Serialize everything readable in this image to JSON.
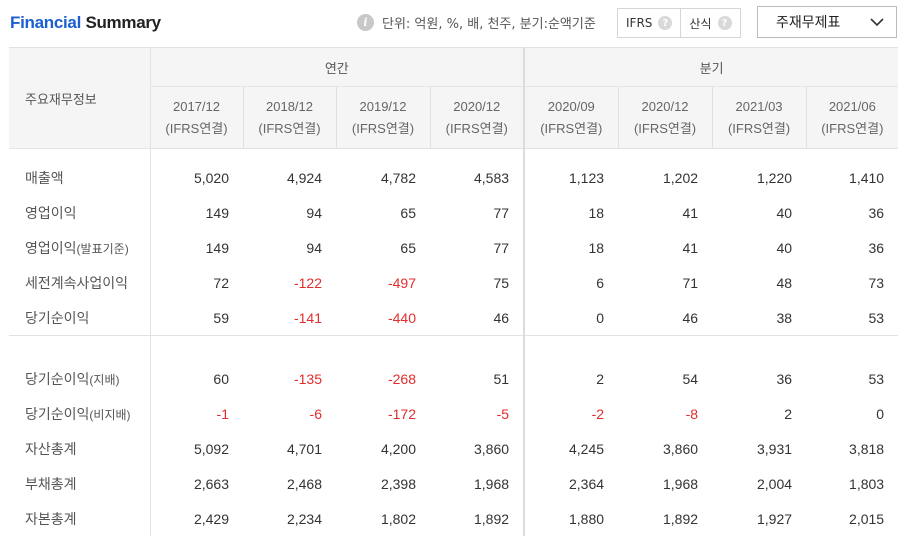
{
  "header": {
    "title_part1": "Financial",
    "title_part2": "Summary",
    "info_icon": "i",
    "unit_text": "단위: 억원, %, 배, 천주, 분기:순액기준",
    "toggle": [
      {
        "label": "IFRS",
        "help": "?"
      },
      {
        "label": "산식",
        "help": "?"
      }
    ],
    "dropdown_value": "주재무제표"
  },
  "table": {
    "label_header": "주요재무정보",
    "group_headers": [
      "연간",
      "분기"
    ],
    "periods": [
      {
        "date": "2017/12",
        "type": "(IFRS연결)"
      },
      {
        "date": "2018/12",
        "type": "(IFRS연결)"
      },
      {
        "date": "2019/12",
        "type": "(IFRS연결)"
      },
      {
        "date": "2020/12",
        "type": "(IFRS연결)"
      },
      {
        "date": "2020/09",
        "type": "(IFRS연결)"
      },
      {
        "date": "2020/12",
        "type": "(IFRS연결)"
      },
      {
        "date": "2021/03",
        "type": "(IFRS연결)"
      },
      {
        "date": "2021/06",
        "type": "(IFRS연결)"
      }
    ],
    "section1": [
      {
        "label": "매출액",
        "sub": "",
        "values": [
          "5,020",
          "4,924",
          "4,782",
          "4,583",
          "1,123",
          "1,202",
          "1,220",
          "1,410"
        ]
      },
      {
        "label": "영업이익",
        "sub": "",
        "values": [
          "149",
          "94",
          "65",
          "77",
          "18",
          "41",
          "40",
          "36"
        ]
      },
      {
        "label": "영업이익",
        "sub": "(발표기준)",
        "values": [
          "149",
          "94",
          "65",
          "77",
          "18",
          "41",
          "40",
          "36"
        ]
      },
      {
        "label": "세전계속사업이익",
        "sub": "",
        "values": [
          "72",
          "-122",
          "-497",
          "75",
          "6",
          "71",
          "48",
          "73"
        ]
      },
      {
        "label": "당기순이익",
        "sub": "",
        "values": [
          "59",
          "-141",
          "-440",
          "46",
          "0",
          "46",
          "38",
          "53"
        ]
      }
    ],
    "section2": [
      {
        "label": "당기순이익",
        "sub": "(지배)",
        "values": [
          "60",
          "-135",
          "-268",
          "51",
          "2",
          "54",
          "36",
          "53"
        ]
      },
      {
        "label": "당기순이익",
        "sub": "(비지배)",
        "values": [
          "-1",
          "-6",
          "-172",
          "-5",
          "-2",
          "-8",
          "2",
          "0"
        ]
      },
      {
        "label": "자산총계",
        "sub": "",
        "values": [
          "5,092",
          "4,701",
          "4,200",
          "3,860",
          "4,245",
          "3,860",
          "3,931",
          "3,818"
        ]
      },
      {
        "label": "부채총계",
        "sub": "",
        "values": [
          "2,663",
          "2,468",
          "2,398",
          "1,968",
          "2,364",
          "1,968",
          "2,004",
          "1,803"
        ]
      },
      {
        "label": "자본총계",
        "sub": "",
        "values": [
          "2,429",
          "2,234",
          "1,802",
          "1,892",
          "1,880",
          "1,892",
          "1,927",
          "2,015"
        ]
      }
    ]
  }
}
